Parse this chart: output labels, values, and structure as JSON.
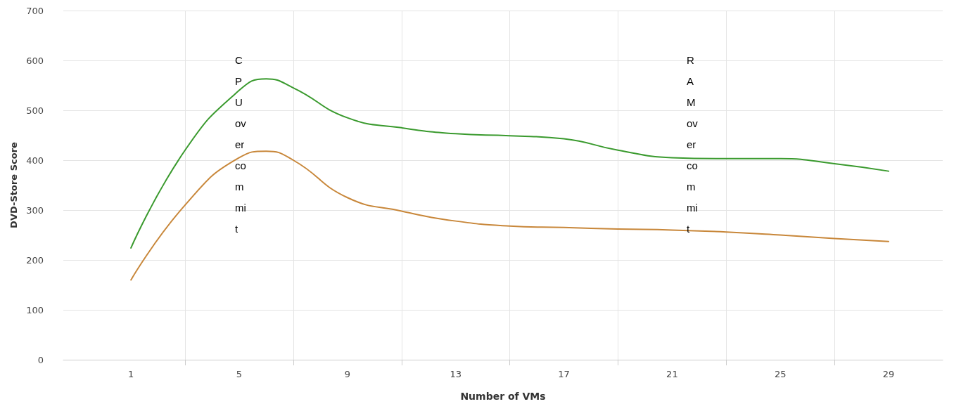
{
  "chart_data": {
    "type": "line",
    "xlabel": "Number of VMs",
    "ylabel": "DVD-Store Score",
    "x": [
      1,
      3,
      5,
      6,
      7,
      9,
      11,
      13,
      15,
      17,
      19,
      21,
      23,
      25,
      27,
      29
    ],
    "series": [
      {
        "color": "#3a9a2e",
        "values": [
          224,
          420,
          540,
          563,
          545,
          485,
          465,
          453,
          449,
          443,
          420,
          405,
          403,
          403,
          393,
          378
        ]
      },
      {
        "color": "#c8873a",
        "values": [
          160,
          310,
          405,
          418,
          400,
          325,
          298,
          278,
          268,
          265,
          262,
          260,
          256,
          250,
          243,
          237
        ]
      }
    ],
    "xlim": [
      -1.5,
      31
    ],
    "xticks": [
      1,
      {
        "value": 3,
        "label": null
      },
      5,
      {
        "value": 7,
        "label": null
      },
      9,
      {
        "value": 11,
        "label": null
      },
      13,
      {
        "value": 15,
        "label": null
      },
      17,
      {
        "value": 19,
        "label": null
      },
      21,
      {
        "value": 23,
        "label": null
      },
      25,
      {
        "value": 27,
        "label": null
      },
      29
    ],
    "ylim": [
      0,
      700
    ],
    "yticks": [
      0,
      100,
      200,
      300,
      400,
      500,
      600,
      700
    ],
    "grid": true,
    "marker": "none",
    "line_style": "solid",
    "annotations": [
      "CPU overcommit",
      "RAM overcommit"
    ]
  }
}
